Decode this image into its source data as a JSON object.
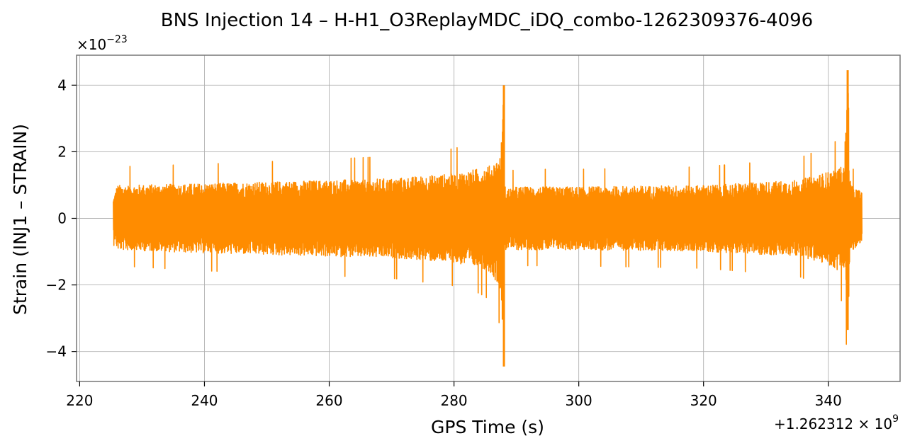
{
  "chart_data": {
    "type": "line",
    "title": "BNS Injection 14 – H-H1_O3ReplayMDC_iDQ_combo-1262309376-4096",
    "xlabel": "GPS Time (s)",
    "ylabel": "Strain (INJ1 – STRAIN)",
    "x_offset_text": "+1.262312",
    "x_offset_exp": "9",
    "y_scale_text": "×10",
    "y_scale_exp": "−23",
    "xlim": [
      219.5,
      351.5
    ],
    "ylim": [
      -4.9,
      4.9
    ],
    "x_ticks": [
      220,
      240,
      260,
      280,
      300,
      320,
      340
    ],
    "x_tick_labels": [
      "220",
      "240",
      "260",
      "280",
      "300",
      "320",
      "340"
    ],
    "y_ticks": [
      -4,
      -2,
      0,
      2,
      4
    ],
    "y_tick_labels": [
      "−4",
      "−2",
      "0",
      "2",
      "4"
    ],
    "grid": true,
    "series": [
      {
        "color": "#ff8c00",
        "x_start": 225.4,
        "x_end": 345.4,
        "envelope": {
          "x": [
            225.4,
            226.0,
            240.0,
            260.0,
            270.0,
            280.0,
            284.0,
            286.0,
            287.5,
            287.95,
            288.05,
            288.5,
            290.0,
            300.0,
            320.0,
            335.0,
            340.0,
            342.5,
            343.2,
            343.4,
            344.0,
            345.4
          ],
          "upper": [
            0.6,
            1.0,
            1.05,
            1.15,
            1.2,
            1.35,
            1.5,
            1.6,
            1.9,
            3.9,
            1.0,
            0.9,
            0.95,
            0.95,
            1.0,
            1.15,
            1.4,
            1.6,
            4.4,
            1.2,
            0.95,
            0.8
          ],
          "lower": [
            -0.5,
            -0.95,
            -1.05,
            -1.15,
            -1.2,
            -1.35,
            -1.5,
            -1.65,
            -2.2,
            -4.4,
            -1.0,
            -0.9,
            -0.95,
            -0.95,
            -1.0,
            -1.15,
            -1.4,
            -1.7,
            -3.3,
            -1.2,
            -0.95,
            -0.8
          ]
        },
        "peaks": [
          {
            "x": 288.0,
            "y_max": 4.0,
            "y_min": -4.45
          },
          {
            "x": 343.1,
            "y_max": 4.45,
            "y_min": -3.35
          }
        ]
      }
    ]
  }
}
